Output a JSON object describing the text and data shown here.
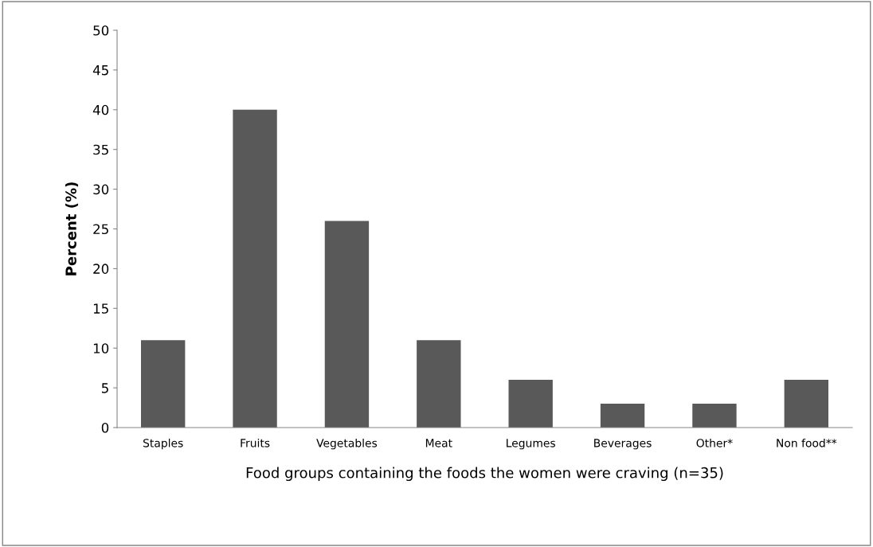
{
  "chart_data": {
    "type": "bar",
    "categories": [
      "Staples",
      "Fruits",
      "Vegetables",
      "Meat",
      "Legumes",
      "Beverages",
      "Other*",
      "Non food**"
    ],
    "values": [
      11,
      40,
      26,
      11,
      6,
      3,
      3,
      6
    ],
    "color": "#595959",
    "xlabel": "Food groups containing the foods the women were craving (n=35)",
    "ylabel": "Percent (%)",
    "ylim": [
      0,
      50
    ],
    "yticks": [
      0,
      5,
      10,
      15,
      20,
      25,
      30,
      35,
      40,
      45,
      50
    ],
    "grid": false,
    "legend": false
  }
}
